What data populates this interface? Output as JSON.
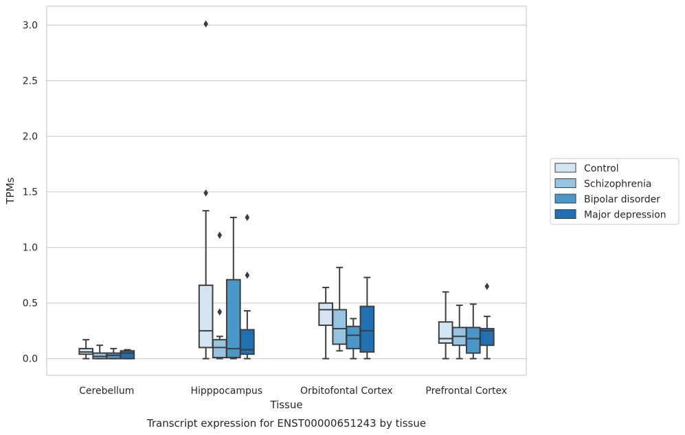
{
  "caption": "Transcript expression for ENST00000651243 by tissue",
  "chart_data": {
    "type": "box",
    "title": "",
    "xlabel": "Tissue",
    "ylabel": "TPMs",
    "ylim": [
      -0.15,
      3.17
    ],
    "yticks": [
      0.0,
      0.5,
      1.0,
      1.5,
      2.0,
      2.5,
      3.0
    ],
    "ytick_labels": [
      "0.0",
      "0.5",
      "1.0",
      "1.5",
      "2.0",
      "2.5",
      "3.0"
    ],
    "grid": "horizontal",
    "legend_position": "right",
    "categories": [
      "Cerebellum",
      "Hipppocampus",
      "Orbitofontal Cortex",
      "Prefrontal Cortex"
    ],
    "series": [
      {
        "name": "Control",
        "color": "#d3e4f3",
        "boxes": [
          {
            "whislo": 0.0,
            "q1": 0.04,
            "med": 0.06,
            "q3": 0.09,
            "whishi": 0.17,
            "fliers": []
          },
          {
            "whislo": 0.0,
            "q1": 0.1,
            "med": 0.25,
            "q3": 0.66,
            "whishi": 1.33,
            "fliers": [
              1.49,
              3.01
            ]
          },
          {
            "whislo": 0.0,
            "q1": 0.3,
            "med": 0.44,
            "q3": 0.5,
            "whishi": 0.64,
            "fliers": []
          },
          {
            "whislo": 0.0,
            "q1": 0.14,
            "med": 0.18,
            "q3": 0.33,
            "whishi": 0.6,
            "fliers": []
          }
        ]
      },
      {
        "name": "Schizophrenia",
        "color": "#94c4df",
        "boxes": [
          {
            "whislo": 0.0,
            "q1": 0.0,
            "med": 0.02,
            "q3": 0.05,
            "whishi": 0.12,
            "fliers": []
          },
          {
            "whislo": 0.0,
            "q1": 0.01,
            "med": 0.1,
            "q3": 0.17,
            "whishi": 0.2,
            "fliers": [
              0.42,
              1.11
            ]
          },
          {
            "whislo": 0.07,
            "q1": 0.13,
            "med": 0.27,
            "q3": 0.44,
            "whishi": 0.82,
            "fliers": []
          },
          {
            "whislo": 0.0,
            "q1": 0.12,
            "med": 0.2,
            "q3": 0.28,
            "whishi": 0.48,
            "fliers": []
          }
        ]
      },
      {
        "name": "Bipolar disorder",
        "color": "#4a98c9",
        "boxes": [
          {
            "whislo": 0.0,
            "q1": 0.0,
            "med": 0.03,
            "q3": 0.05,
            "whishi": 0.09,
            "fliers": []
          },
          {
            "whislo": 0.0,
            "q1": 0.01,
            "med": 0.09,
            "q3": 0.71,
            "whishi": 1.27,
            "fliers": []
          },
          {
            "whislo": 0.0,
            "q1": 0.09,
            "med": 0.21,
            "q3": 0.29,
            "whishi": 0.36,
            "fliers": []
          },
          {
            "whislo": 0.0,
            "q1": 0.05,
            "med": 0.18,
            "q3": 0.28,
            "whishi": 0.49,
            "fliers": []
          }
        ]
      },
      {
        "name": "Major depression",
        "color": "#2070b4",
        "boxes": [
          {
            "whislo": 0.0,
            "q1": 0.0,
            "med": 0.05,
            "q3": 0.07,
            "whishi": 0.08,
            "fliers": []
          },
          {
            "whislo": 0.0,
            "q1": 0.04,
            "med": 0.08,
            "q3": 0.26,
            "whishi": 0.43,
            "fliers": [
              0.75,
              1.27
            ]
          },
          {
            "whislo": 0.0,
            "q1": 0.06,
            "med": 0.25,
            "q3": 0.47,
            "whishi": 0.73,
            "fliers": []
          },
          {
            "whislo": 0.0,
            "q1": 0.12,
            "med": 0.25,
            "q3": 0.27,
            "whishi": 0.38,
            "fliers": [
              0.65
            ]
          }
        ]
      }
    ]
  }
}
